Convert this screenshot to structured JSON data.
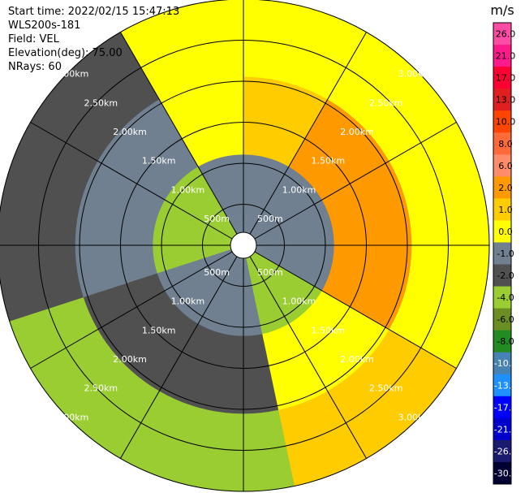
{
  "header": {
    "start_time": "Start time: 2022/02/15 15:47:13",
    "instrument": "WLS200s-181",
    "field": "Field: VEL",
    "elevation": "Elevation(deg): 75.00",
    "nrays": "NRays: 60"
  },
  "chart_data": {
    "type": "heatmap",
    "projection": "polar (PPI)",
    "range_rings_km": [
      "500m",
      "1.00km",
      "1.50km",
      "2.00km",
      "2.50km",
      "3.00km"
    ],
    "ring_count": 6,
    "nrays": 60,
    "spoke_directions_deg": [
      0,
      30,
      60,
      90,
      120,
      150,
      180,
      210,
      240,
      270,
      300,
      330
    ],
    "colorbar": {
      "unit": "m/s",
      "ticks": [
        "26.0",
        "21.0",
        "17.0",
        "13.0",
        "10.0",
        "8.0",
        "6.0",
        "2.0",
        "1.0",
        "0.0",
        "-1.0",
        "-2.0",
        "-4.0",
        "-6.0",
        "-8.0",
        "-10.0",
        "-13.0",
        "-17.0",
        "-21.0",
        "-26.0",
        "-30.0"
      ],
      "colors": [
        "#ff4da6",
        "#ff1a8c",
        "#ff0033",
        "#e02020",
        "#ff4500",
        "#ff6a3a",
        "#ff8c69",
        "#ff9900",
        "#ffcc00",
        "#ffff00",
        "#708090",
        "#505050",
        "#9acd32",
        "#6b8e23",
        "#228b22",
        "#4682b4",
        "#1e90ff",
        "#0000ff",
        "#0000cd",
        "#1a1a6e",
        "#000033"
      ]
    },
    "sectors": [
      {
        "from_deg": 0,
        "to_deg": 30,
        "inner": "#708090",
        "outer": "#ffff00",
        "mid": "#ffcc00"
      },
      {
        "from_deg": 30,
        "to_deg": 120,
        "inner": "#708090",
        "outer": "#ffff00",
        "mid": "#ff9900"
      },
      {
        "from_deg": 120,
        "to_deg": 170,
        "inner": "#9acd32",
        "outer": "#ffcc00",
        "mid": "#ffff00"
      },
      {
        "from_deg": 170,
        "to_deg": 250,
        "inner": "#708090",
        "outer": "#9acd32",
        "mid": "#505050"
      },
      {
        "from_deg": 250,
        "to_deg": 330,
        "inner": "#9acd32",
        "outer": "#505050",
        "mid": "#708090"
      },
      {
        "from_deg": 330,
        "to_deg": 360,
        "inner": "#708090",
        "outer": "#ffff00",
        "mid": "#ffff00"
      }
    ]
  }
}
